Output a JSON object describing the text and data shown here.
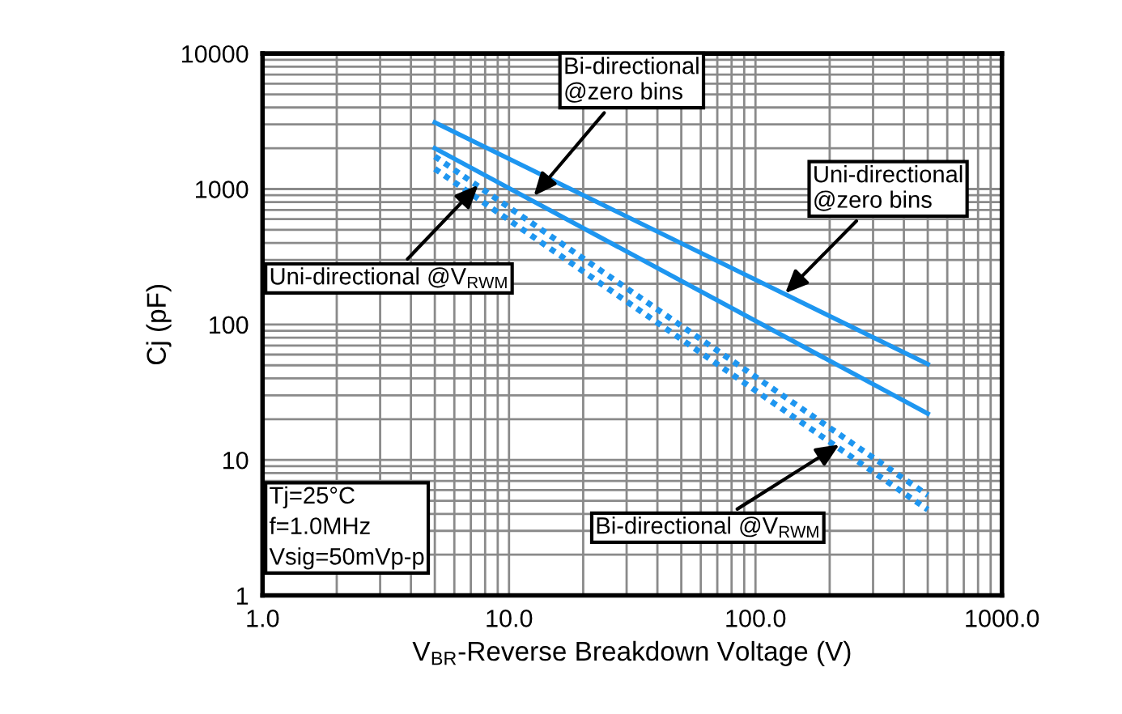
{
  "chart_data": {
    "type": "line",
    "xlabel": "V$_{BR}$-Reverse Breakdown Voltage (V)",
    "ylabel": "Cj (pF)",
    "log": "xy",
    "xlim": [
      1,
      1000
    ],
    "xticks": [
      {
        "value": 1,
        "label": "1.0"
      },
      {
        "value": 10,
        "label": "10.0"
      },
      {
        "value": 100,
        "label": "100.0"
      },
      {
        "value": 1000,
        "label": "1000.0"
      }
    ],
    "ylim": [
      1,
      10000
    ],
    "yticks": [
      1,
      10,
      100,
      1000,
      10000
    ],
    "grid": true,
    "legend": false,
    "marker": "none",
    "x": [
      5,
      500
    ],
    "series": [
      {
        "color": "#1e96f0",
        "line_style": "solid",
        "values": [
          3100,
          51
        ]
      },
      {
        "color": "#1e96f0",
        "line_style": "solid",
        "values": [
          2000,
          22
        ]
      },
      {
        "color": "#1e96f0",
        "line_style": "dotted",
        "values": [
          1740,
          5.5
        ]
      },
      {
        "color": "#1e96f0",
        "line_style": "dotted",
        "values": [
          1410,
          4.3
        ]
      }
    ],
    "annotations": [
      {
        "text": "Bi-directional\n@zero bins",
        "x": 12.6,
        "y": 890
      },
      {
        "text": "Uni-directional\n@zero bins",
        "x": 132,
        "y": 170
      },
      {
        "text": "Uni-directional @V$_{RWM}$",
        "x": 7.5,
        "y": 1070
      },
      {
        "text": "Bi-directional @V$_{RWM}$",
        "x": 219,
        "y": 13
      },
      "Tj=25°C\nf=1.0MHz\nVsig=50mVp-p"
    ]
  }
}
